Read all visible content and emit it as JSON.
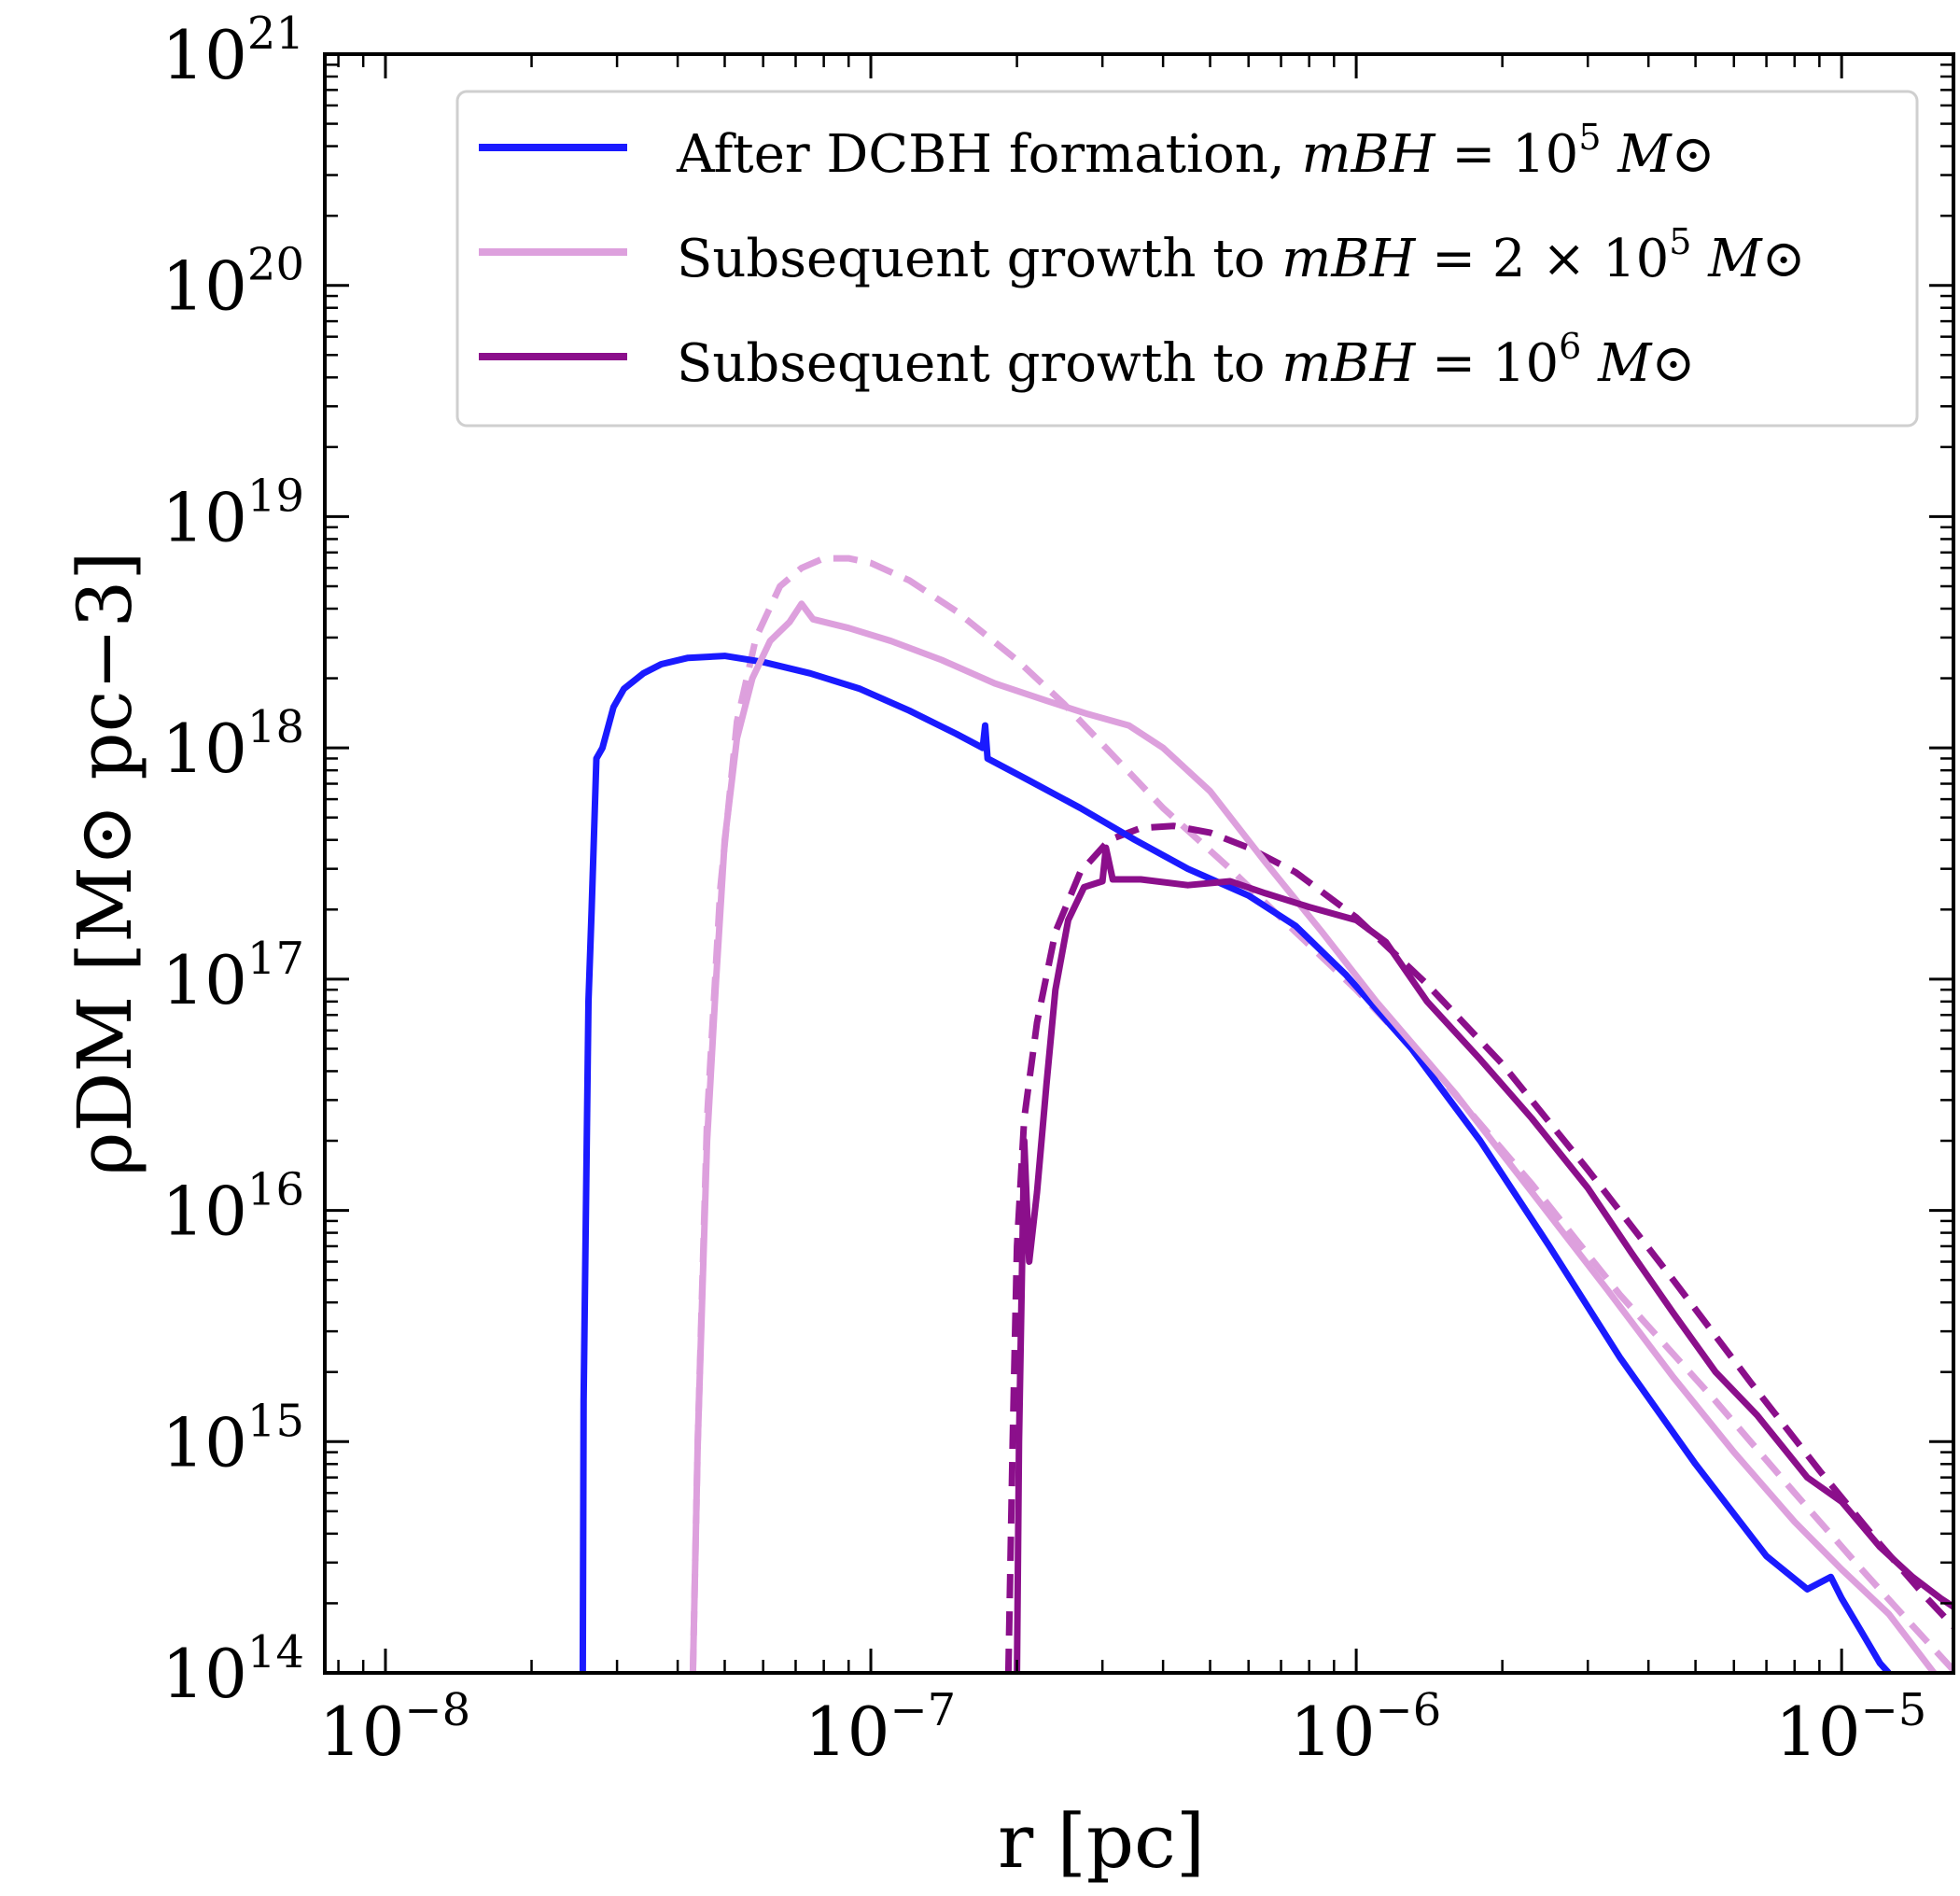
{
  "chart_data": {
    "type": "line",
    "xscale": "log",
    "yscale": "log",
    "xlim": [
      7.5e-09,
      1.7e-05
    ],
    "ylim": [
      100000000000000.0,
      1e+21
    ],
    "xlabel": "r [pc]",
    "ylabel": "ρDM [M⊙ pc−3]",
    "x_ticks": [
      {
        "value": 1e-08,
        "base": "10",
        "exp": "−8"
      },
      {
        "value": 1e-07,
        "base": "10",
        "exp": "−7"
      },
      {
        "value": 1e-06,
        "base": "10",
        "exp": "−6"
      },
      {
        "value": 1e-05,
        "base": "10",
        "exp": "−5"
      }
    ],
    "y_ticks": [
      {
        "value": 100000000000000.0,
        "base": "10",
        "exp": "14"
      },
      {
        "value": 1000000000000000.0,
        "base": "10",
        "exp": "15"
      },
      {
        "value": 1e+16,
        "base": "10",
        "exp": "16"
      },
      {
        "value": 1e+17,
        "base": "10",
        "exp": "17"
      },
      {
        "value": 1e+18,
        "base": "10",
        "exp": "18"
      },
      {
        "value": 1e+19,
        "base": "10",
        "exp": "19"
      },
      {
        "value": 1e+20,
        "base": "10",
        "exp": "20"
      },
      {
        "value": 1e+21,
        "base": "10",
        "exp": "21"
      }
    ],
    "legend_position": "top-right",
    "series": [
      {
        "name": "After DCBH formation, mBH = 10^5 M⊙",
        "color": "#1a1aff",
        "style": "solid",
        "points": [
          [
            2.55e-08,
            100000000000000.0
          ],
          [
            2.56e-08,
            1500000000000000.0
          ],
          [
            2.62e-08,
            8e+16
          ],
          [
            2.66e-08,
            2e+17
          ],
          [
            2.72e-08,
            9e+17
          ],
          [
            2.8e-08,
            1e+18
          ],
          [
            2.95e-08,
            1.5e+18
          ],
          [
            3.1e-08,
            1.8e+18
          ],
          [
            3.4e-08,
            2.1e+18
          ],
          [
            3.7e-08,
            2.3e+18
          ],
          [
            4.2e-08,
            2.45e+18
          ],
          [
            5e-08,
            2.5e+18
          ],
          [
            6e-08,
            2.35e+18
          ],
          [
            7.5e-08,
            2.1e+18
          ],
          [
            9.5e-08,
            1.8e+18
          ],
          [
            1.2e-07,
            1.45e+18
          ],
          [
            1.5e-07,
            1.15e+18
          ],
          [
            1.7e-07,
            1e+18
          ],
          [
            1.72e-07,
            1.25e+18
          ],
          [
            1.74e-07,
            9e+17
          ],
          [
            2.1e-07,
            7.3e+17
          ],
          [
            2.7e-07,
            5.5e+17
          ],
          [
            3.5e-07,
            4e+17
          ],
          [
            4.5e-07,
            3e+17
          ],
          [
            6e-07,
            2.3e+17
          ],
          [
            7.5e-07,
            1.7e+17
          ],
          [
            9.5e-07,
            1.05e+17
          ],
          [
            1.3e-06,
            5e+16
          ],
          [
            1.8e-06,
            2e+16
          ],
          [
            2.5e-06,
            7000000000000000.0
          ],
          [
            3.5e-06,
            2300000000000000.0
          ],
          [
            5e-06,
            800000000000000.0
          ],
          [
            7e-06,
            320000000000000.0
          ],
          [
            8.5e-06,
            230000000000000.0
          ],
          [
            9.5e-06,
            260000000000000.0
          ],
          [
            1e-05,
            210000000000000.0
          ],
          [
            1.1e-05,
            150000000000000.0
          ],
          [
            1.2e-05,
            110000000000000.0
          ],
          [
            1.25e-05,
            100000000000000.0
          ]
        ]
      },
      {
        "name": "Subsequent growth to mBH = 2 × 10^5 M⊙",
        "color": "#dda0dd",
        "style": "solid",
        "points": [
          [
            4.3e-08,
            100000000000000.0
          ],
          [
            4.4e-08,
            1000000000000000.0
          ],
          [
            4.6e-08,
            2e+16
          ],
          [
            4.8e-08,
            1e+17
          ],
          [
            5e-08,
            4e+17
          ],
          [
            5.3e-08,
            1.1e+18
          ],
          [
            5.7e-08,
            2e+18
          ],
          [
            6.2e-08,
            2.9e+18
          ],
          [
            6.8e-08,
            3.5e+18
          ],
          [
            7.2e-08,
            4.2e+18
          ],
          [
            7.6e-08,
            3.6e+18
          ],
          [
            9e-08,
            3.3e+18
          ],
          [
            1.1e-07,
            2.9e+18
          ],
          [
            1.4e-07,
            2.4e+18
          ],
          [
            1.8e-07,
            1.9e+18
          ],
          [
            2.3e-07,
            1.6e+18
          ],
          [
            2.8e-07,
            1.4e+18
          ],
          [
            3.4e-07,
            1.25e+18
          ],
          [
            4e-07,
            1e+18
          ],
          [
            5e-07,
            6.5e+17
          ],
          [
            6.5e-07,
            3.2e+17
          ],
          [
            8.5e-07,
            1.6e+17
          ],
          [
            1.1e-06,
            8e+16
          ],
          [
            1.6e-06,
            3.2e+16
          ],
          [
            2.3e-06,
            1.2e+16
          ],
          [
            3.3e-06,
            4500000000000000.0
          ],
          [
            4.5e-06,
            1900000000000000.0
          ],
          [
            6e-06,
            900000000000000.0
          ],
          [
            8e-06,
            450000000000000.0
          ],
          [
            1e-05,
            280000000000000.0
          ],
          [
            1.25e-05,
            180000000000000.0
          ],
          [
            1.45e-05,
            120000000000000.0
          ],
          [
            1.55e-05,
            100000000000000.0
          ]
        ]
      },
      {
        "name": "Subsequent growth to mBH = 10^6 M⊙",
        "color": "#8b0f8b",
        "style": "solid",
        "points": [
          [
            2e-07,
            100000000000000.0
          ],
          [
            2.02e-07,
            1000000000000000.0
          ],
          [
            2.07e-07,
            2e+16
          ],
          [
            2.12e-07,
            6000000000000000.0
          ],
          [
            2.2e-07,
            1.2e+16
          ],
          [
            2.3e-07,
            3.5e+16
          ],
          [
            2.4e-07,
            9e+16
          ],
          [
            2.55e-07,
            1.8e+17
          ],
          [
            2.75e-07,
            2.5e+17
          ],
          [
            3e-07,
            2.65e+17
          ],
          [
            3.05e-07,
            3.7e+17
          ],
          [
            3.15e-07,
            2.7e+17
          ],
          [
            3.6e-07,
            2.7e+17
          ],
          [
            4.5e-07,
            2.55e+17
          ],
          [
            5.5e-07,
            2.65e+17
          ],
          [
            6.5e-07,
            2.35e+17
          ],
          [
            8e-07,
            2.05e+17
          ],
          [
            1e-06,
            1.8e+17
          ],
          [
            1.15e-06,
            1.45e+17
          ],
          [
            1.4e-06,
            8e+16
          ],
          [
            1.8e-06,
            4.5e+16
          ],
          [
            2.3e-06,
            2.5e+16
          ],
          [
            3e-06,
            1.25e+16
          ],
          [
            3.7e-06,
            6500000000000000.0
          ],
          [
            4.5e-06,
            3600000000000000.0
          ],
          [
            5.5e-06,
            2000000000000000.0
          ],
          [
            6.7e-06,
            1300000000000000.0
          ],
          [
            8.5e-06,
            700000000000000.0
          ],
          [
            1e-05,
            550000000000000.0
          ],
          [
            1.2e-05,
            350000000000000.0
          ],
          [
            1.4e-05,
            260000000000000.0
          ],
          [
            1.6e-05,
            210000000000000.0
          ],
          [
            1.72e-05,
            190000000000000.0
          ]
        ]
      },
      {
        "color": "#dda0dd",
        "style": "dashed",
        "points": [
          [
            4.3e-08,
            100000000000000.0
          ],
          [
            4.4e-08,
            1000000000000000.0
          ],
          [
            4.6e-08,
            2.5e+16
          ],
          [
            4.9e-08,
            2.5e+17
          ],
          [
            5.3e-08,
            1.3e+18
          ],
          [
            5.8e-08,
            3e+18
          ],
          [
            6.5e-08,
            5e+18
          ],
          [
            7.2e-08,
            6e+18
          ],
          [
            8e-08,
            6.6e+18
          ],
          [
            9e-08,
            6.6e+18
          ],
          [
            1e-07,
            6.3e+18
          ],
          [
            1.2e-07,
            5.3e+18
          ],
          [
            1.5e-07,
            3.9e+18
          ],
          [
            2e-07,
            2.4e+18
          ],
          [
            2.5e-07,
            1.55e+18
          ],
          [
            3.2e-07,
            9e+17
          ],
          [
            4e-07,
            5.5e+17
          ],
          [
            5.5e-07,
            3e+17
          ],
          [
            7.5e-07,
            1.6e+17
          ],
          [
            1e-06,
            9e+16
          ],
          [
            1.5e-06,
            3.7e+16
          ],
          [
            2.3e-06,
            1.3e+16
          ],
          [
            3.5e-06,
            4300000000000000.0
          ],
          [
            5.5e-06,
            1500000000000000.0
          ],
          [
            8e-06,
            600000000000000.0
          ],
          [
            1.1e-05,
            280000000000000.0
          ],
          [
            1.4e-05,
            160000000000000.0
          ],
          [
            1.72e-05,
            100000000000000.0
          ]
        ]
      },
      {
        "color": "#8b0f8b",
        "style": "dashed",
        "points": [
          [
            1.92e-07,
            100000000000000.0
          ],
          [
            1.96e-07,
            1000000000000000.0
          ],
          [
            2e-07,
            7000000000000000.0
          ],
          [
            2.07e-07,
            2.5e+16
          ],
          [
            2.2e-07,
            6.5e+16
          ],
          [
            2.4e-07,
            1.6e+17
          ],
          [
            2.7e-07,
            2.9e+17
          ],
          [
            3.1e-07,
            4e+17
          ],
          [
            3.6e-07,
            4.5e+17
          ],
          [
            4.2e-07,
            4.6e+17
          ],
          [
            5e-07,
            4.3e+17
          ],
          [
            6e-07,
            3.7e+17
          ],
          [
            7.5e-07,
            2.9e+17
          ],
          [
            1e-06,
            1.85e+17
          ],
          [
            1.4e-06,
            9.5e+16
          ],
          [
            2e-06,
            4.3e+16
          ],
          [
            3e-06,
            1.5e+16
          ],
          [
            4.5e-06,
            5000000000000000.0
          ],
          [
            6.5e-06,
            1800000000000000.0
          ],
          [
            9e-06,
            750000000000000.0
          ],
          [
            1.2e-05,
            360000000000000.0
          ],
          [
            1.5e-05,
            210000000000000.0
          ],
          [
            1.72e-05,
            155000000000000.0
          ]
        ]
      }
    ]
  },
  "legend": {
    "items": [
      {
        "color": "#1a1aff",
        "text": "After DCBH formation, ",
        "math": "mBH",
        "rest": " = 10",
        "sup": "5",
        "unit": " M⊙"
      },
      {
        "color": "#dda0dd",
        "text": "Subsequent growth to ",
        "math": "mBH",
        "rest": " = 2 × 10",
        "sup": "5",
        "unit": " M⊙"
      },
      {
        "color": "#8b0f8b",
        "text": "Subsequent growth to ",
        "math": "mBH",
        "rest": " = 10",
        "sup": "6",
        "unit": " M⊙"
      }
    ]
  }
}
